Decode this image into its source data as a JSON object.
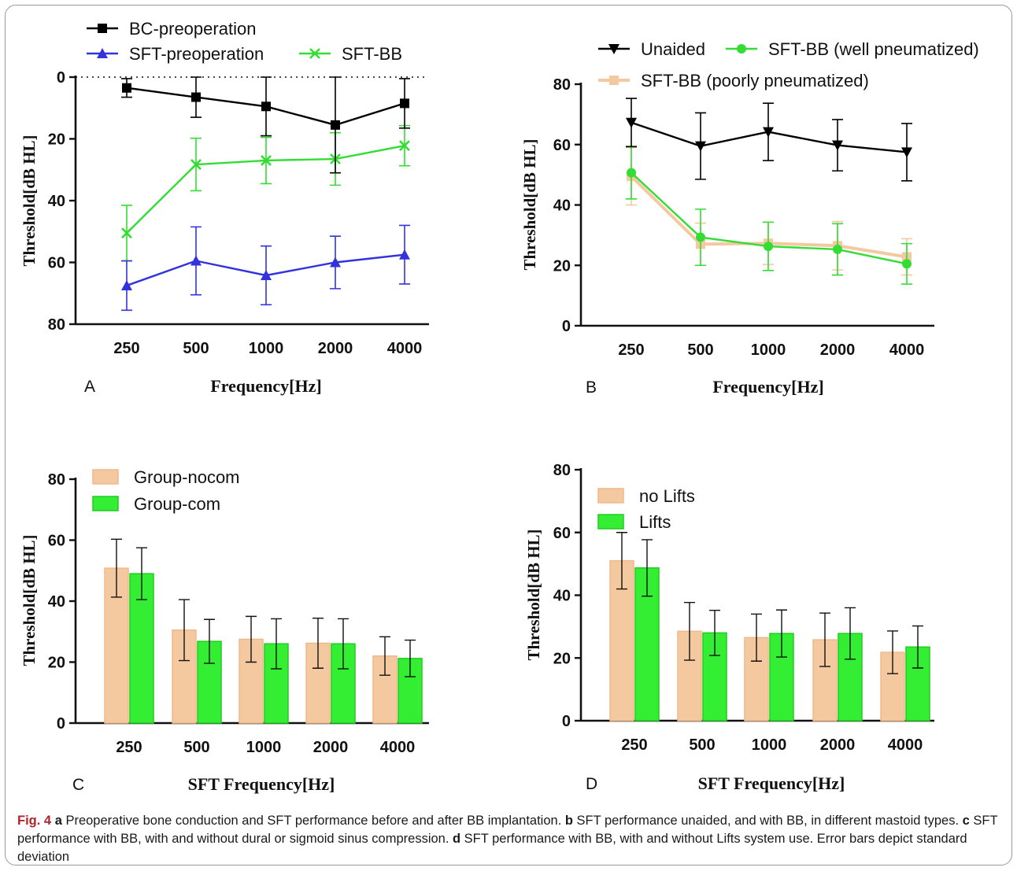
{
  "chart_data": [
    {
      "panel": "A",
      "type": "line",
      "xlabel": "Frequency[Hz]",
      "ylabel": "Threshold[dB HL]",
      "categories": [
        "250",
        "500",
        "1000",
        "2000",
        "4000"
      ],
      "ylim": [
        80,
        0
      ],
      "yticks": [
        0,
        20,
        40,
        60,
        80
      ],
      "y_inverted": true,
      "reference_line_y": 0,
      "legend": "top",
      "series": [
        {
          "name": "BC-preoperation",
          "marker": "square",
          "color": "#000000",
          "values": [
            3.5,
            6.5,
            9.5,
            15.5,
            8.5
          ],
          "sd": [
            3,
            6.5,
            9.5,
            15.5,
            8
          ]
        },
        {
          "name": "SFT-preoperation",
          "marker": "triangle-up",
          "color": "#3333dd",
          "values": [
            67.5,
            59.5,
            64.2,
            60,
            57.5
          ],
          "sd": [
            8,
            11,
            9.5,
            8.5,
            9.5
          ]
        },
        {
          "name": "SFT-BB",
          "marker": "x",
          "color": "#33dd33",
          "values": [
            50.5,
            28.3,
            27,
            26.5,
            22.2
          ],
          "sd": [
            9,
            8.5,
            7.5,
            8.5,
            6.5
          ]
        }
      ]
    },
    {
      "panel": "B",
      "type": "line",
      "xlabel": "Frequency[Hz]",
      "ylabel": "Threshold[dB HL]",
      "categories": [
        "250",
        "500",
        "1000",
        "2000",
        "4000"
      ],
      "ylim": [
        0,
        80
      ],
      "yticks": [
        0,
        20,
        40,
        60,
        80
      ],
      "legend": "top",
      "series": [
        {
          "name": "Unaided",
          "marker": "triangle-down",
          "color": "#000000",
          "values": [
            67.3,
            59.5,
            64.2,
            59.8,
            57.5
          ],
          "sd": [
            8,
            11,
            9.5,
            8.5,
            9.5
          ]
        },
        {
          "name": "SFT-BB (well pneumatized)",
          "marker": "circle",
          "color": "#33dd33",
          "values": [
            50.7,
            29.3,
            26.3,
            25.3,
            20.5
          ],
          "sd": [
            8.7,
            9.3,
            8,
            8.5,
            6.7
          ]
        },
        {
          "name": "SFT-BB (poorly pneumatized)",
          "marker": "square",
          "color": "#f5c9a0",
          "values": [
            49.5,
            27,
            27.3,
            26.5,
            22.8
          ],
          "sd": [
            9.5,
            7,
            7,
            8,
            6
          ]
        }
      ]
    },
    {
      "panel": "C",
      "type": "bar",
      "xlabel": "SFT Frequency[Hz]",
      "ylabel": "Threshold[dB HL]",
      "categories": [
        "250",
        "500",
        "1000",
        "2000",
        "4000"
      ],
      "ylim": [
        0,
        80
      ],
      "yticks": [
        0,
        20,
        40,
        60,
        80
      ],
      "legend": "top-left",
      "series": [
        {
          "name": "Group-nocom",
          "color": "#f5c9a0",
          "values": [
            50.8,
            30.5,
            27.5,
            26.2,
            22
          ],
          "sd": [
            9.5,
            10,
            7.5,
            8.2,
            6.3
          ]
        },
        {
          "name": "Group-com",
          "color": "#33ee33",
          "values": [
            49,
            26.8,
            26,
            26,
            21.2
          ],
          "sd": [
            8.5,
            7.2,
            8.2,
            8.2,
            6
          ]
        }
      ]
    },
    {
      "panel": "D",
      "type": "bar",
      "xlabel": "SFT Frequency[Hz]",
      "ylabel": "Threshold[dB HL]",
      "categories": [
        "250",
        "500",
        "1000",
        "2000",
        "4000"
      ],
      "ylim": [
        0,
        80
      ],
      "yticks": [
        0,
        20,
        40,
        60,
        80
      ],
      "legend": "top-left",
      "series": [
        {
          "name": "no Lifts",
          "color": "#f5c9a0",
          "values": [
            51,
            28.5,
            26.5,
            25.8,
            21.8
          ],
          "sd": [
            9,
            9.2,
            7.5,
            8.5,
            6.8
          ]
        },
        {
          "name": "Lifts",
          "color": "#33ee33",
          "values": [
            48.7,
            28,
            27.8,
            27.8,
            23.5
          ],
          "sd": [
            9,
            7.2,
            7.5,
            8.2,
            6.7
          ]
        }
      ]
    }
  ],
  "caption": {
    "fig_label": "Fig. 4",
    "parts": [
      {
        "letter": "a",
        "text": " Preoperative bone conduction and SFT performance before and after BB implantation. "
      },
      {
        "letter": "b",
        "text": " SFT performance unaided, and with BB, in different mastoid types. "
      },
      {
        "letter": "c",
        "text": " SFT performance with BB, with and without dural or sigmoid sinus compression. "
      },
      {
        "letter": "d",
        "text": " SFT performance with BB, with and without Lifts system use. Error bars depict standard deviation"
      }
    ]
  }
}
